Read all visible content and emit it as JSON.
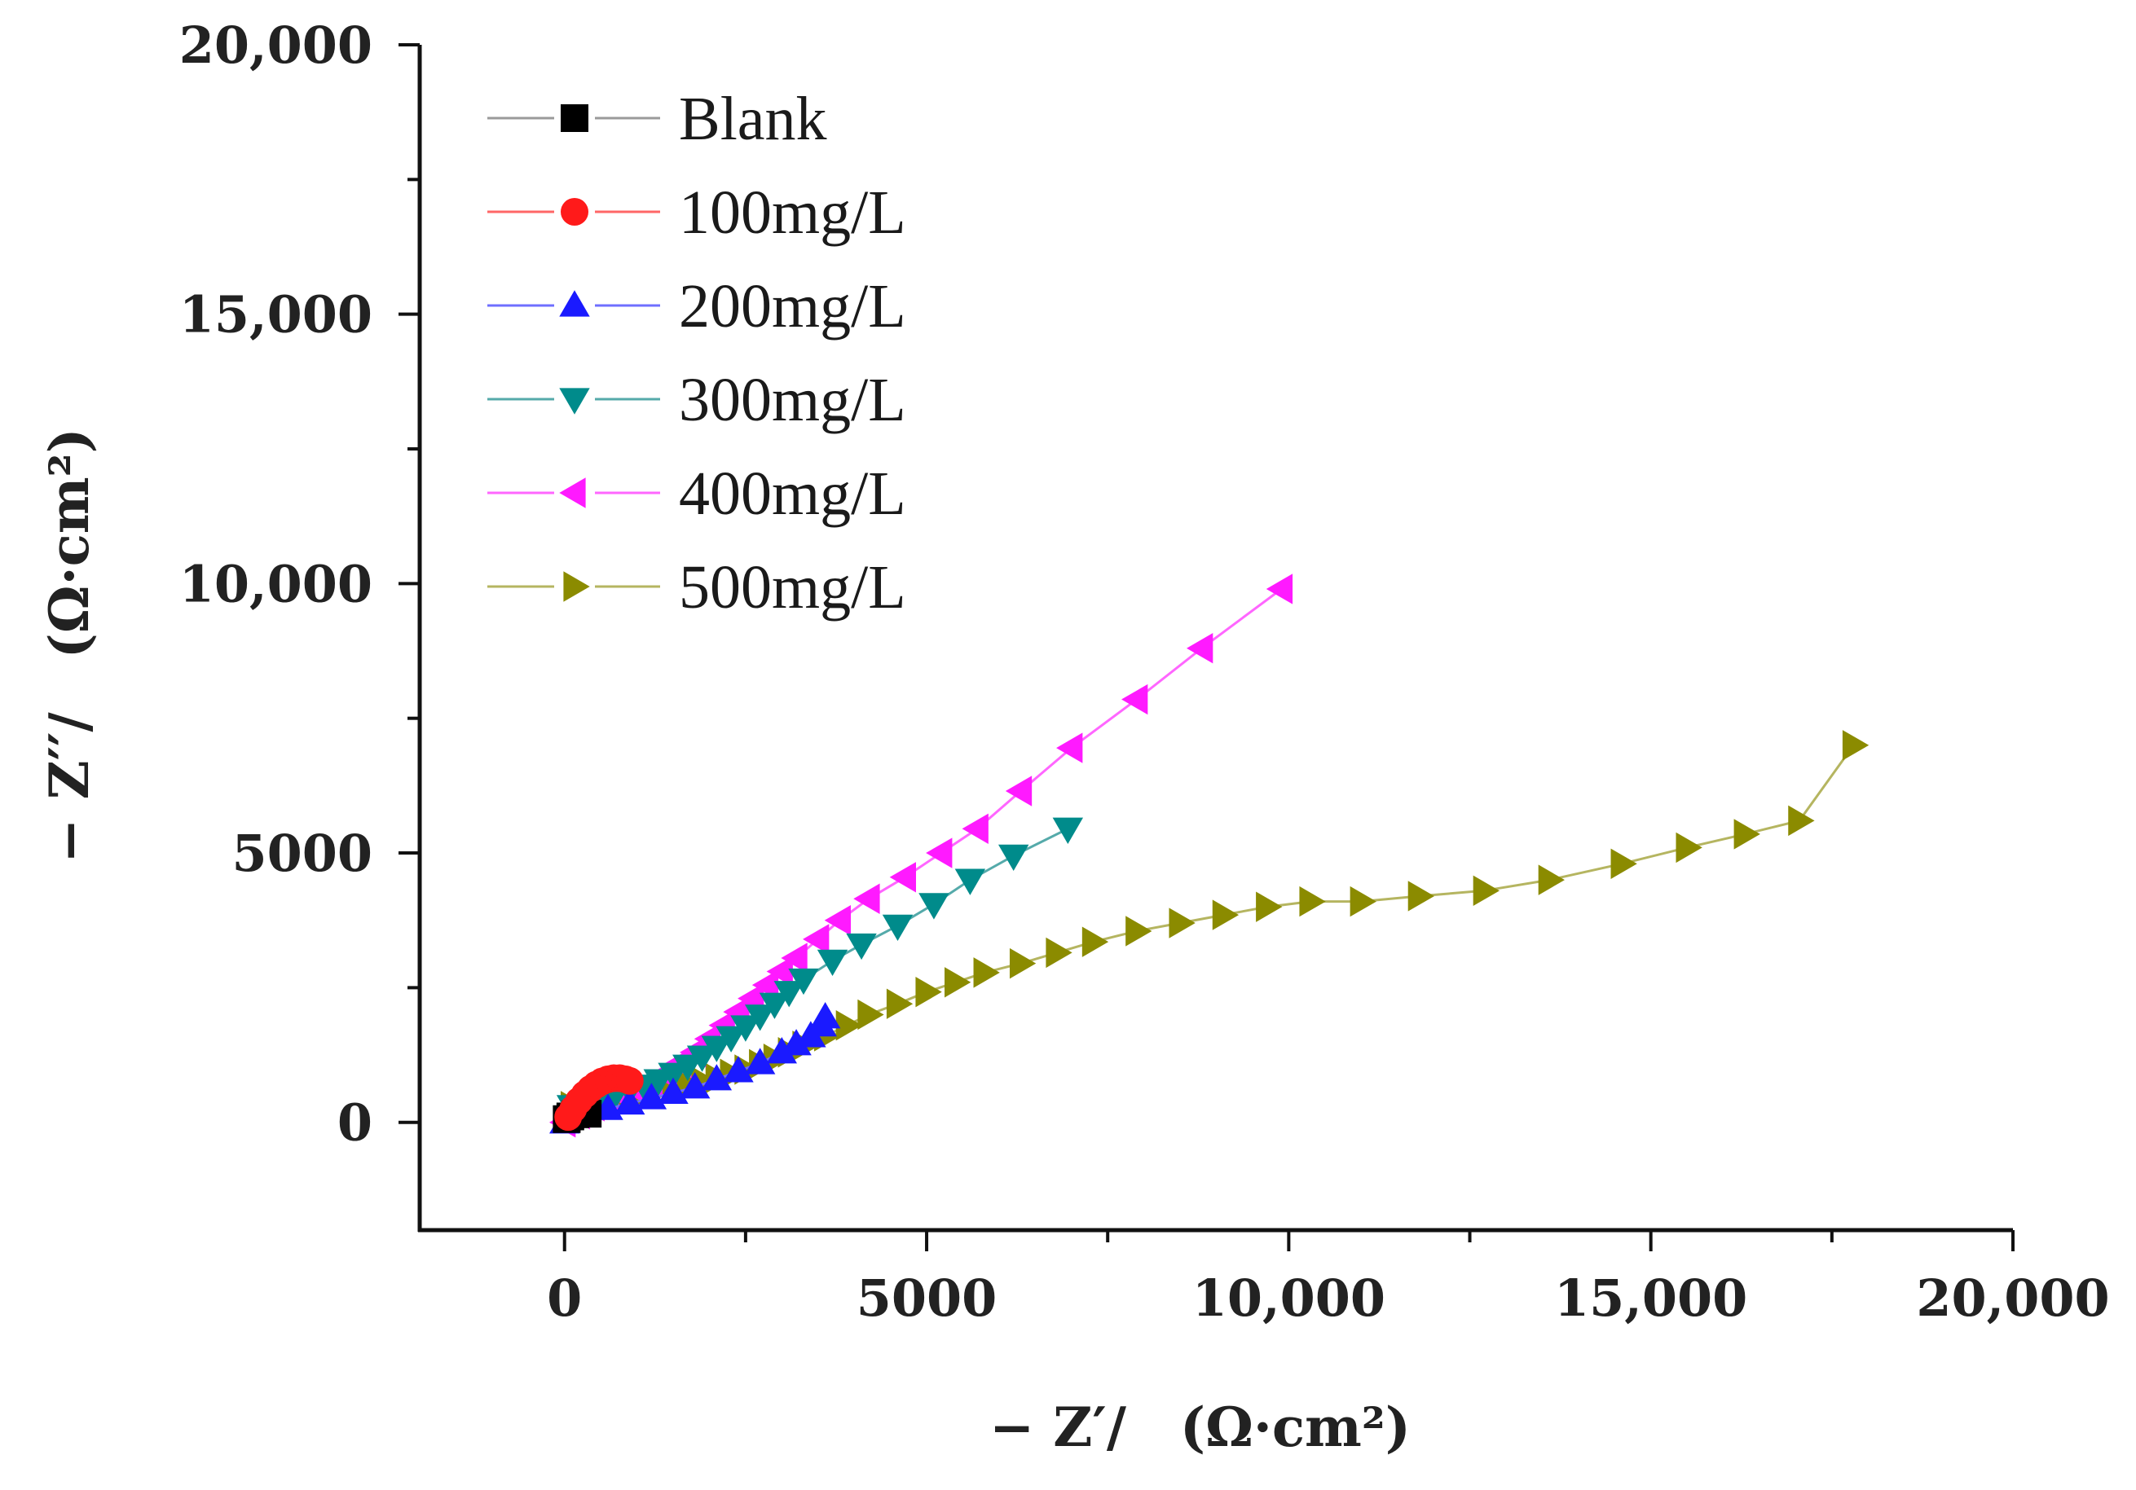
{
  "chart_data": {
    "type": "scatter",
    "title": "",
    "xlabel": "− Z′/　(Ω·cm²)",
    "ylabel": "− Z′′/　(Ω·cm²)",
    "xlim": [
      -2000,
      20000
    ],
    "ylim": [
      -2000,
      20000
    ],
    "xticks": [
      0,
      5000,
      10000,
      15000,
      20000
    ],
    "yticks": [
      0,
      5000,
      10000,
      15000,
      20000
    ],
    "xtick_labels": [
      "0",
      "5000",
      "10,000",
      "15,000",
      "20,000"
    ],
    "ytick_labels": [
      "0",
      "5000",
      "10,000",
      "15,000",
      "20,000"
    ],
    "legend_position": "top-left",
    "series": [
      {
        "name": "Blank",
        "color": "#000000",
        "line_color": "#9a9a9a",
        "marker": "square",
        "x": [
          30,
          80,
          150,
          230,
          320
        ],
        "y": [
          60,
          110,
          150,
          170,
          160
        ]
      },
      {
        "name": "100mg/L",
        "color": "#ff1a1a",
        "line_color": "#ff6666",
        "marker": "circle",
        "x": [
          50,
          120,
          200,
          280,
          360,
          440,
          520,
          600,
          680,
          760,
          840,
          900
        ],
        "y": [
          100,
          250,
          400,
          520,
          620,
          700,
          760,
          800,
          820,
          820,
          800,
          770
        ]
      },
      {
        "name": "200mg/L",
        "color": "#1a1aff",
        "line_color": "#6f6fff",
        "marker": "triangle-up",
        "x": [
          0,
          300,
          600,
          900,
          1200,
          1500,
          1800,
          2100,
          2400,
          2700,
          3000,
          3200,
          3400,
          3550,
          3600
        ],
        "y": [
          0,
          150,
          250,
          350,
          450,
          550,
          650,
          800,
          950,
          1100,
          1300,
          1450,
          1600,
          1800,
          1950
        ]
      },
      {
        "name": "300mg/L",
        "color": "#008b8b",
        "line_color": "#55aaaa",
        "marker": "triangle-down",
        "x": [
          100,
          300,
          500,
          700,
          900,
          1100,
          1300,
          1500,
          1700,
          1900,
          2100,
          2300,
          2500,
          2700,
          2900,
          3100,
          3300,
          3700,
          4100,
          4600,
          5100,
          5600,
          6200,
          6950
        ],
        "y": [
          300,
          380,
          450,
          520,
          600,
          680,
          780,
          900,
          1050,
          1220,
          1400,
          1580,
          1780,
          1980,
          2200,
          2420,
          2650,
          3000,
          3300,
          3650,
          4050,
          4500,
          4950,
          5450
        ]
      },
      {
        "name": "400mg/L",
        "color": "#ff1aff",
        "line_color": "#ff66ff",
        "marker": "triangle-left",
        "x": [
          0,
          200,
          400,
          600,
          800,
          1000,
          1200,
          1400,
          1600,
          1800,
          2000,
          2200,
          2400,
          2600,
          2800,
          3000,
          3200,
          3500,
          3800,
          4200,
          4700,
          5200,
          5700,
          6300,
          7000,
          7900,
          8800,
          9900
        ],
        "y": [
          0,
          150,
          300,
          400,
          500,
          600,
          750,
          900,
          1100,
          1300,
          1550,
          1800,
          2050,
          2300,
          2550,
          2800,
          3050,
          3400,
          3750,
          4150,
          4550,
          5000,
          5450,
          6150,
          6950,
          7850,
          8800,
          9900
        ]
      },
      {
        "name": "500mg/L",
        "color": "#8b8b00",
        "line_color": "#b5b560",
        "marker": "triangle-right",
        "x": [
          100,
          300,
          500,
          700,
          900,
          1100,
          1300,
          1500,
          1700,
          1900,
          2100,
          2300,
          2500,
          2700,
          2900,
          3100,
          3300,
          3600,
          3900,
          4200,
          4600,
          5000,
          5400,
          5800,
          6300,
          6800,
          7300,
          7900,
          8500,
          9100,
          9700,
          10300,
          11000,
          11800,
          12700,
          13600,
          14600,
          15500,
          16300,
          17050,
          17800
        ],
        "y": [
          300,
          400,
          450,
          480,
          520,
          560,
          600,
          650,
          700,
          760,
          820,
          900,
          980,
          1080,
          1180,
          1300,
          1420,
          1600,
          1800,
          2000,
          2200,
          2420,
          2600,
          2780,
          2950,
          3150,
          3350,
          3550,
          3700,
          3850,
          4000,
          4100,
          4100,
          4200,
          4300,
          4500,
          4800,
          5100,
          5350,
          5600,
          7000
        ]
      }
    ]
  }
}
